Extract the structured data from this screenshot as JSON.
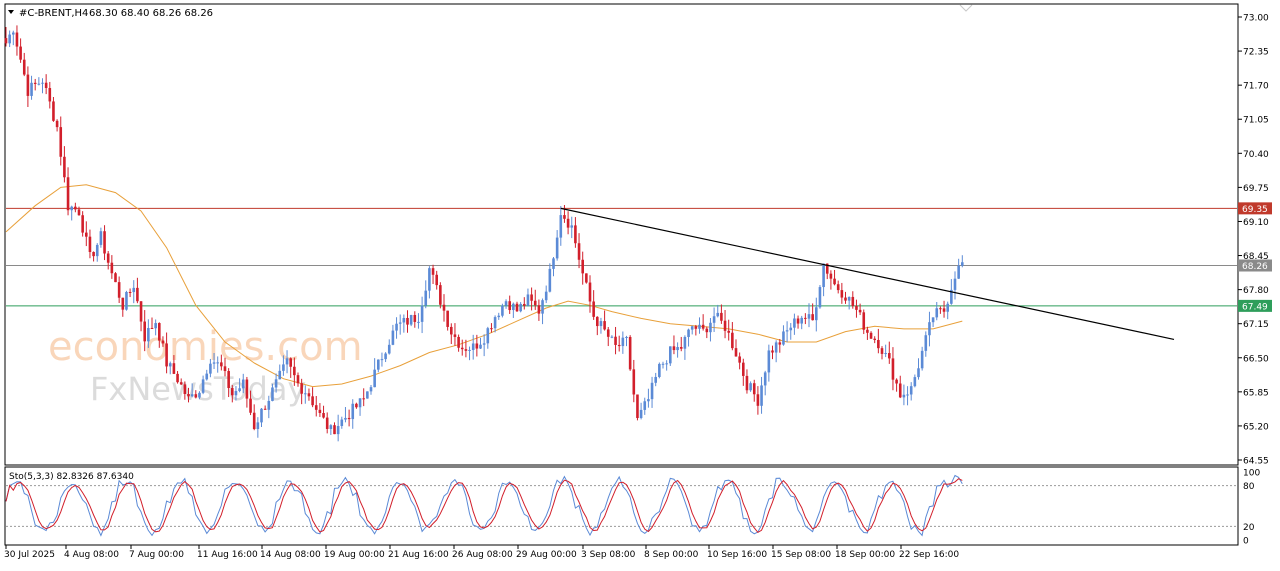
{
  "chart_header": {
    "symbol": "#C-BRENT,H4",
    "ohlc": "68.30 68.40 68.26 68.26"
  },
  "price_axis": {
    "ticks": [
      "73.00",
      "72.35",
      "71.70",
      "71.05",
      "70.40",
      "69.75",
      "69.10",
      "68.45",
      "67.80",
      "67.15",
      "66.50",
      "65.85",
      "65.20",
      "64.55"
    ]
  },
  "levels": {
    "resistance": {
      "value": 69.35,
      "label": "69.35",
      "color": "#c0392b"
    },
    "current": {
      "value": 68.26,
      "label": "68.26",
      "color": "#8a8a8a"
    },
    "support": {
      "value": 67.49,
      "label": "67.49",
      "color": "#2e9e5b"
    }
  },
  "time_axis": {
    "labels": [
      "30 Jul 2025",
      "4 Aug 08:00",
      "7 Aug 00:00",
      "11 Aug 16:00",
      "14 Aug 08:00",
      "19 Aug 00:00",
      "21 Aug 16:00",
      "26 Aug 08:00",
      "29 Aug 00:00",
      "3 Sep 08:00",
      "8 Sep 00:00",
      "10 Sep 16:00",
      "15 Sep 08:00",
      "18 Sep 00:00",
      "22 Sep 16:00"
    ]
  },
  "oscillator": {
    "label": "Sto(5,3,3) 82.8326 87.6340",
    "ticks": [
      "100",
      "80",
      "20",
      "0"
    ]
  },
  "watermark": {
    "line1": "economies.com",
    "line2": "FxNewsToday"
  },
  "colors": {
    "bull": "#5b8ad6",
    "bear": "#d21f2b",
    "ma": "#e8a03a",
    "trendline": "#000000",
    "stoch_main": "#5b8ad6",
    "stoch_signal": "#d21f2b"
  },
  "chart_data": {
    "type": "candlestick",
    "symbol": "#C-BRENT",
    "timeframe": "H4",
    "ylim": [
      64.55,
      73.0
    ],
    "grid": false,
    "candle_close_path": [
      [
        0,
        72.5
      ],
      [
        2,
        72.8
      ],
      [
        6,
        71.6
      ],
      [
        10,
        71.8
      ],
      [
        14,
        70.9
      ],
      [
        17,
        69.4
      ],
      [
        20,
        69.3
      ],
      [
        23,
        68.4
      ],
      [
        26,
        68.8
      ],
      [
        29,
        68.1
      ],
      [
        32,
        67.5
      ],
      [
        35,
        67.9
      ],
      [
        38,
        66.9
      ],
      [
        41,
        67.2
      ],
      [
        44,
        66.4
      ],
      [
        47,
        66.1
      ],
      [
        50,
        65.7
      ],
      [
        53,
        65.9
      ],
      [
        56,
        66.5
      ],
      [
        59,
        66.3
      ],
      [
        62,
        65.8
      ],
      [
        65,
        66.0
      ],
      [
        68,
        65.2
      ],
      [
        71,
        65.6
      ],
      [
        74,
        66.0
      ],
      [
        77,
        66.4
      ],
      [
        80,
        66.0
      ],
      [
        83,
        65.8
      ],
      [
        86,
        65.4
      ],
      [
        89,
        65.1
      ],
      [
        92,
        65.3
      ],
      [
        95,
        65.5
      ],
      [
        98,
        65.7
      ],
      [
        101,
        66.2
      ],
      [
        104,
        66.7
      ],
      [
        107,
        67.1
      ],
      [
        110,
        67.2
      ],
      [
        113,
        67.3
      ],
      [
        116,
        68.2
      ],
      [
        119,
        67.6
      ],
      [
        122,
        67.0
      ],
      [
        125,
        66.7
      ],
      [
        128,
        66.7
      ],
      [
        131,
        66.9
      ],
      [
        134,
        67.3
      ],
      [
        137,
        67.6
      ],
      [
        140,
        67.4
      ],
      [
        143,
        67.6
      ],
      [
        146,
        67.4
      ],
      [
        149,
        68.1
      ],
      [
        152,
        69.3
      ],
      [
        155,
        69.0
      ],
      [
        158,
        68.1
      ],
      [
        161,
        67.3
      ],
      [
        164,
        67.0
      ],
      [
        167,
        66.7
      ],
      [
        170,
        66.8
      ],
      [
        173,
        65.3
      ],
      [
        176,
        65.7
      ],
      [
        179,
        66.3
      ],
      [
        182,
        66.6
      ],
      [
        185,
        66.7
      ],
      [
        188,
        67.1
      ],
      [
        191,
        67.0
      ],
      [
        194,
        67.3
      ],
      [
        197,
        67.1
      ],
      [
        200,
        66.6
      ],
      [
        203,
        66.0
      ],
      [
        206,
        65.7
      ],
      [
        209,
        66.6
      ],
      [
        212,
        66.8
      ],
      [
        215,
        67.1
      ],
      [
        218,
        67.3
      ],
      [
        221,
        67.2
      ],
      [
        224,
        68.3
      ],
      [
        227,
        67.9
      ],
      [
        230,
        67.7
      ],
      [
        233,
        67.4
      ],
      [
        236,
        67.0
      ],
      [
        239,
        66.8
      ],
      [
        242,
        66.4
      ],
      [
        245,
        65.8
      ],
      [
        248,
        65.9
      ],
      [
        251,
        66.6
      ],
      [
        254,
        67.3
      ],
      [
        257,
        67.4
      ],
      [
        260,
        68.1
      ],
      [
        262,
        68.3
      ]
    ],
    "moving_average_path": [
      [
        0,
        68.9
      ],
      [
        8,
        69.4
      ],
      [
        15,
        69.75
      ],
      [
        22,
        69.8
      ],
      [
        30,
        69.65
      ],
      [
        37,
        69.3
      ],
      [
        44,
        68.6
      ],
      [
        52,
        67.5
      ],
      [
        60,
        66.8
      ],
      [
        68,
        66.4
      ],
      [
        76,
        66.1
      ],
      [
        84,
        65.95
      ],
      [
        92,
        66.0
      ],
      [
        100,
        66.15
      ],
      [
        108,
        66.35
      ],
      [
        116,
        66.6
      ],
      [
        124,
        66.75
      ],
      [
        132,
        66.95
      ],
      [
        140,
        67.2
      ],
      [
        148,
        67.45
      ],
      [
        154,
        67.58
      ],
      [
        160,
        67.5
      ],
      [
        166,
        67.38
      ],
      [
        174,
        67.25
      ],
      [
        182,
        67.15
      ],
      [
        190,
        67.1
      ],
      [
        198,
        67.05
      ],
      [
        206,
        66.95
      ],
      [
        214,
        66.8
      ],
      [
        222,
        66.8
      ],
      [
        230,
        67.0
      ],
      [
        238,
        67.1
      ],
      [
        246,
        67.05
      ],
      [
        254,
        67.05
      ],
      [
        262,
        67.2
      ]
    ],
    "trendline": {
      "from": [
        152,
        69.35
      ],
      "to": [
        320,
        66.85
      ]
    },
    "horizontal_levels": [
      69.35,
      68.26,
      67.49
    ],
    "stochastic": {
      "name": "Sto(5,3,3)",
      "main": 82.8326,
      "signal": 87.634,
      "ylim": [
        0,
        100
      ],
      "levels": [
        20,
        80
      ]
    }
  }
}
